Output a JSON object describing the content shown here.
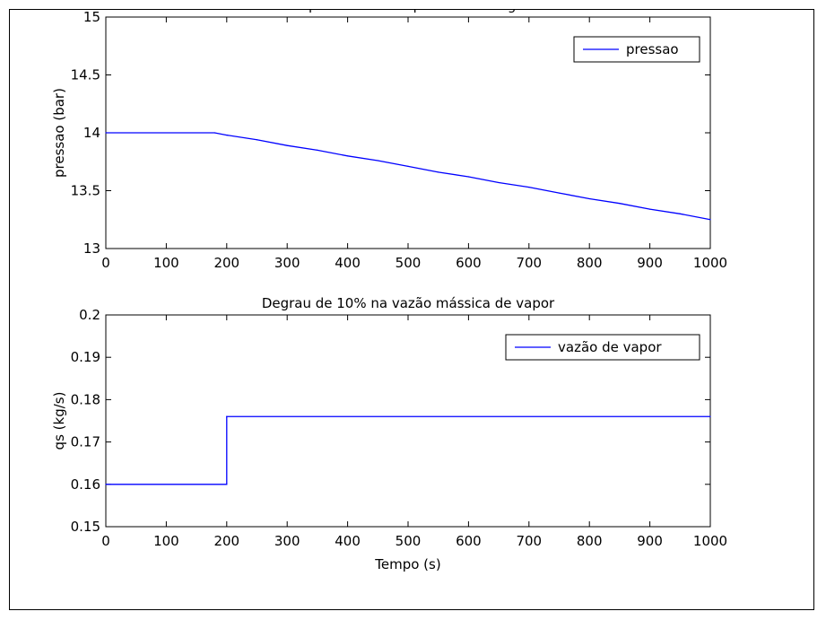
{
  "chart_data": [
    {
      "type": "line",
      "title": "Comportamento da pressão ao degrau",
      "xlabel": "",
      "ylabel": "pressao (bar)",
      "xlim": [
        0,
        1000
      ],
      "ylim": [
        13,
        15
      ],
      "xticks": [
        0,
        100,
        200,
        300,
        400,
        500,
        600,
        700,
        800,
        900,
        1000
      ],
      "xtick_labels": [
        "0",
        "100",
        "200",
        "300",
        "400",
        "500",
        "600",
        "700",
        "800",
        "900",
        "1000"
      ],
      "yticks": [
        13,
        13.5,
        14,
        14.5,
        15
      ],
      "ytick_labels": [
        "13",
        "13.5",
        "14",
        "14.5",
        "15"
      ],
      "grid": false,
      "legend_position": "top-right",
      "series": [
        {
          "name": "pressao",
          "color": "#0000ff",
          "x": [
            0,
            180,
            200,
            250,
            300,
            350,
            400,
            450,
            500,
            550,
            600,
            650,
            700,
            750,
            800,
            850,
            900,
            950,
            1000
          ],
          "y": [
            14.0,
            14.0,
            13.98,
            13.94,
            13.89,
            13.85,
            13.8,
            13.76,
            13.71,
            13.66,
            13.62,
            13.57,
            13.53,
            13.48,
            13.43,
            13.39,
            13.34,
            13.3,
            13.25
          ]
        }
      ]
    },
    {
      "type": "line",
      "title": "Degrau de 10% na vazão mássica de vapor",
      "xlabel": "Tempo (s)",
      "ylabel": "qs (kg/s)",
      "xlim": [
        0,
        1000
      ],
      "ylim": [
        0.15,
        0.2
      ],
      "xticks": [
        0,
        100,
        200,
        300,
        400,
        500,
        600,
        700,
        800,
        900,
        1000
      ],
      "xtick_labels": [
        "0",
        "100",
        "200",
        "300",
        "400",
        "500",
        "600",
        "700",
        "800",
        "900",
        "1000"
      ],
      "yticks": [
        0.15,
        0.16,
        0.17,
        0.18,
        0.19,
        0.2
      ],
      "ytick_labels": [
        "0.15",
        "0.16",
        "0.17",
        "0.18",
        "0.19",
        "0.2"
      ],
      "grid": false,
      "legend_position": "top-right",
      "series": [
        {
          "name": "vazão de vapor",
          "color": "#0000ff",
          "x": [
            0,
            200,
            200,
            1000
          ],
          "y": [
            0.16,
            0.16,
            0.176,
            0.176
          ]
        }
      ]
    }
  ]
}
